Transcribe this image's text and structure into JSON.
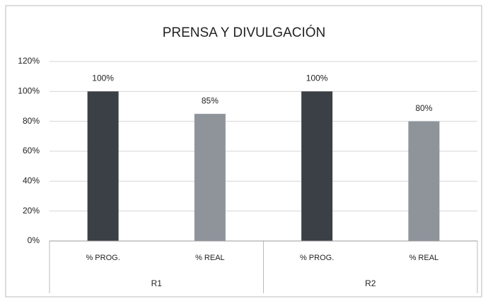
{
  "chart_data": {
    "type": "bar",
    "title": "PRENSA Y DIVULGACIÓN",
    "categories": [
      "% PROG.",
      "% REAL",
      "% PROG.",
      "% REAL"
    ],
    "groups": [
      "R1",
      "R2"
    ],
    "values": [
      100,
      85,
      100,
      80
    ],
    "value_labels": [
      "100%",
      "85%",
      "100%",
      "80%"
    ],
    "colors": [
      "#3b4046",
      "#8f949b",
      "#3b4046",
      "#8f949b"
    ],
    "ylim": [
      0,
      120
    ],
    "yticks": [
      {
        "value": 0,
        "label": "0%"
      },
      {
        "value": 20,
        "label": "20%"
      },
      {
        "value": 40,
        "label": "40%"
      },
      {
        "value": 60,
        "label": "60%"
      },
      {
        "value": 80,
        "label": "80%"
      },
      {
        "value": 100,
        "label": "100%"
      },
      {
        "value": 120,
        "label": "120%"
      }
    ],
    "grid": true
  }
}
